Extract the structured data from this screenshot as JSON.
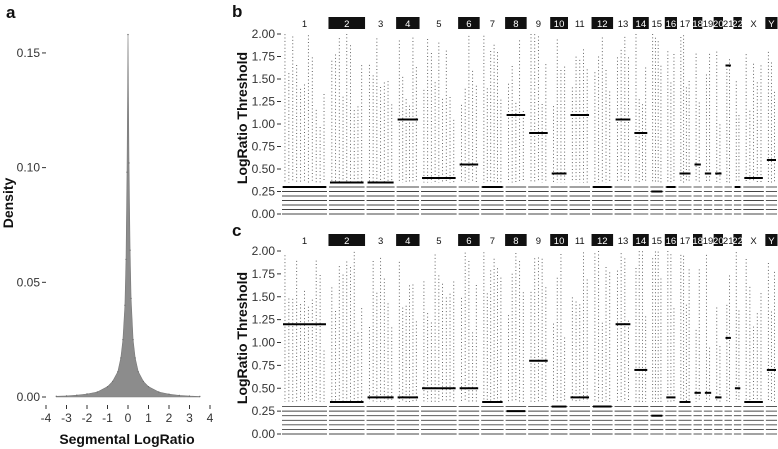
{
  "panels": {
    "a": {
      "tag": "a",
      "xlabel": "Segmental LogRatio",
      "ylabel": "Density",
      "x_ticks": [
        "-4",
        "-3",
        "-2",
        "-1",
        "0",
        "1",
        "2",
        "3",
        "4"
      ],
      "y_ticks": [
        "0.00",
        "0.05",
        "0.10",
        "0.15"
      ]
    },
    "b": {
      "tag": "b",
      "ylabel": "LogRatio Threshold",
      "y_ticks": [
        "0.00",
        "0.25",
        "0.50",
        "0.75",
        "1.00",
        "1.25",
        "1.50",
        "1.75",
        "2.00"
      ]
    },
    "c": {
      "tag": "c",
      "ylabel": "LogRatio Threshold",
      "y_ticks": [
        "0.00",
        "0.25",
        "0.50",
        "0.75",
        "1.00",
        "1.25",
        "1.50",
        "1.75",
        "2.00"
      ]
    }
  },
  "chart_data": [
    {
      "panel": "a",
      "type": "area",
      "xlabel": "Segmental LogRatio",
      "ylabel": "Density",
      "xlim": [
        -4,
        4
      ],
      "ylim": [
        0,
        0.16
      ],
      "x": [
        -3.5,
        -3.0,
        -2.5,
        -2.0,
        -1.5,
        -1.0,
        -0.75,
        -0.5,
        -0.35,
        -0.25,
        -0.15,
        -0.1,
        -0.05,
        0.0,
        0.05,
        0.1,
        0.15,
        0.25,
        0.35,
        0.5,
        0.75,
        1.0,
        1.5,
        2.0,
        2.5,
        3.0,
        3.5
      ],
      "y": [
        0.0003,
        0.0005,
        0.0008,
        0.0013,
        0.0022,
        0.0045,
        0.0068,
        0.011,
        0.017,
        0.025,
        0.04,
        0.06,
        0.098,
        0.158,
        0.102,
        0.064,
        0.043,
        0.025,
        0.017,
        0.011,
        0.0068,
        0.0045,
        0.0022,
        0.0012,
        0.0007,
        0.0004,
        0.0002
      ],
      "color": "#8c8c8c"
    },
    {
      "panel": "b",
      "type": "scatter",
      "ylabel": "LogRatio Threshold",
      "ylim": [
        0,
        2
      ],
      "chromosomes": [
        "1",
        "2",
        "3",
        "4",
        "5",
        "6",
        "7",
        "8",
        "9",
        "10",
        "11",
        "12",
        "13",
        "14",
        "15",
        "16",
        "17",
        "18",
        "19",
        "20",
        "21",
        "22",
        "X",
        "Y"
      ],
      "chromosome_highlighted": [
        false,
        true,
        false,
        true,
        false,
        true,
        false,
        true,
        false,
        true,
        false,
        true,
        false,
        true,
        false,
        true,
        false,
        true,
        false,
        true,
        false,
        true,
        false,
        true
      ],
      "selected_threshold": [
        0.3,
        0.35,
        0.35,
        1.05,
        0.4,
        0.55,
        0.3,
        1.1,
        0.9,
        0.45,
        1.1,
        0.3,
        1.05,
        0.9,
        0.25,
        0.3,
        0.45,
        0.55,
        0.45,
        0.45,
        1.65,
        0.3,
        0.4,
        0.6
      ]
    },
    {
      "panel": "c",
      "type": "scatter",
      "ylabel": "LogRatio Threshold",
      "ylim": [
        0,
        2
      ],
      "chromosomes": [
        "1",
        "2",
        "3",
        "4",
        "5",
        "6",
        "7",
        "8",
        "9",
        "10",
        "11",
        "12",
        "13",
        "14",
        "15",
        "16",
        "17",
        "18",
        "19",
        "20",
        "21",
        "22",
        "X",
        "Y"
      ],
      "chromosome_highlighted": [
        false,
        true,
        false,
        true,
        false,
        true,
        false,
        true,
        false,
        true,
        false,
        true,
        false,
        true,
        false,
        true,
        false,
        true,
        false,
        true,
        false,
        true,
        false,
        true
      ],
      "selected_threshold": [
        1.2,
        0.35,
        0.4,
        0.4,
        0.5,
        0.5,
        0.35,
        0.25,
        0.8,
        0.3,
        0.4,
        0.3,
        1.2,
        0.7,
        0.2,
        0.4,
        0.35,
        0.45,
        0.45,
        0.4,
        1.05,
        0.5,
        0.35,
        0.7
      ]
    }
  ]
}
